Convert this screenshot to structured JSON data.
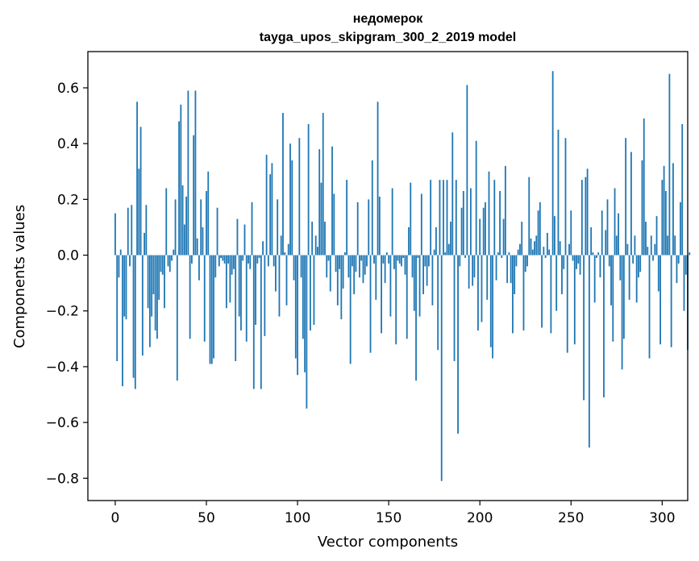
{
  "chart_data": {
    "type": "bar",
    "title_lines": [
      "недомерок",
      "tayga_upos_skipgram_300_2_2019 model"
    ],
    "xlabel": "Vector components",
    "ylabel": "Components values",
    "xlim": [
      -15,
      314
    ],
    "ylim": [
      -0.88,
      0.73
    ],
    "xticks": [
      0,
      50,
      100,
      150,
      200,
      250,
      300
    ],
    "xtick_labels": [
      "0",
      "50",
      "100",
      "150",
      "200",
      "250",
      "300"
    ],
    "yticks": [
      -0.8,
      -0.6,
      -0.4,
      -0.2,
      0.0,
      0.2,
      0.4,
      0.6
    ],
    "ytick_labels": [
      "−0.8",
      "−0.6",
      "−0.4",
      "−0.2",
      "0.0",
      "0.2",
      "0.4",
      "0.6"
    ],
    "bar_color": "#1f77b4",
    "values": [
      0.15,
      -0.38,
      -0.08,
      0.02,
      -0.47,
      -0.22,
      -0.23,
      0.17,
      -0.04,
      0.18,
      -0.44,
      -0.48,
      0.55,
      0.31,
      0.46,
      -0.36,
      0.08,
      0.18,
      -0.19,
      -0.33,
      -0.22,
      -0.14,
      -0.27,
      -0.3,
      -0.16,
      -0.06,
      -0.07,
      -0.19,
      0.24,
      -0.04,
      -0.06,
      -0.02,
      0.02,
      0.2,
      -0.45,
      0.48,
      0.54,
      0.25,
      0.11,
      0.21,
      0.59,
      -0.3,
      -0.03,
      0.43,
      0.59,
      0.06,
      -0.09,
      0.2,
      0.1,
      -0.31,
      0.23,
      0.3,
      -0.39,
      -0.39,
      -0.37,
      -0.08,
      0.17,
      -0.04,
      -0.01,
      -0.02,
      -0.03,
      -0.19,
      -0.03,
      -0.17,
      -0.07,
      -0.05,
      -0.38,
      0.13,
      -0.22,
      -0.27,
      -0.02,
      0.11,
      -0.31,
      -0.03,
      -0.05,
      0.19,
      -0.48,
      -0.25,
      -0.03,
      -0.01,
      -0.48,
      0.05,
      -0.29,
      0.36,
      -0.04,
      0.29,
      0.33,
      -0.04,
      -0.13,
      0.2,
      -0.22,
      0.07,
      0.51,
      0.01,
      -0.18,
      0.04,
      0.4,
      0.34,
      -0.09,
      -0.37,
      -0.43,
      0.42,
      -0.08,
      -0.3,
      -0.42,
      -0.55,
      0.47,
      -0.27,
      0.12,
      -0.25,
      0.07,
      0.03,
      0.38,
      0.26,
      0.51,
      0.12,
      -0.08,
      -0.02,
      -0.13,
      0.39,
      0.22,
      -0.06,
      -0.18,
      -0.05,
      -0.23,
      -0.12,
      0.01,
      0.27,
      -0.08,
      -0.39,
      -0.04,
      -0.14,
      -0.06,
      0.19,
      -0.08,
      -0.02,
      -0.1,
      -0.07,
      -0.04,
      0.2,
      -0.35,
      0.34,
      -0.03,
      -0.16,
      0.55,
      0.21,
      -0.28,
      -0.03,
      -0.1,
      0.01,
      -0.03,
      -0.22,
      0.24,
      -0.05,
      -0.32,
      -0.02,
      -0.03,
      -0.04,
      -0.01,
      -0.07,
      -0.3,
      0.1,
      0.26,
      -0.08,
      -0.2,
      -0.45,
      -0.01,
      -0.22,
      0.22,
      -0.14,
      -0.04,
      -0.11,
      -0.04,
      0.27,
      -0.18,
      0.02,
      0.1,
      -0.34,
      0.27,
      -0.81,
      0.27,
      0.01,
      0.27,
      0.04,
      0.12,
      0.44,
      -0.38,
      0.27,
      -0.64,
      -0.04,
      0.17,
      0.23,
      -0.01,
      0.61,
      -0.12,
      0.24,
      -0.11,
      -0.08,
      0.41,
      -0.27,
      0.13,
      -0.24,
      0.17,
      0.19,
      -0.16,
      0.3,
      -0.33,
      -0.37,
      0.27,
      -0.09,
      0.01,
      0.23,
      -0.01,
      0.13,
      0.32,
      -0.1,
      0.01,
      -0.1,
      -0.28,
      -0.14,
      -0.04,
      0.02,
      0.04,
      0.12,
      -0.27,
      -0.06,
      -0.04,
      0.28,
      0.06,
      0.02,
      0.05,
      0.07,
      0.16,
      0.19,
      -0.26,
      0.03,
      -0.01,
      0.08,
      0.02,
      -0.28,
      0.66,
      0.14,
      -0.2,
      0.45,
      0.05,
      -0.14,
      -0.05,
      0.42,
      -0.35,
      0.04,
      0.16,
      -0.02,
      -0.32,
      -0.05,
      -0.03,
      -0.07,
      0.27,
      -0.52,
      0.28,
      0.31,
      -0.69,
      0.1,
      0.01,
      -0.17,
      -0.01,
      0.01,
      -0.08,
      0.16,
      -0.51,
      0.09,
      0.2,
      -0.04,
      -0.18,
      -0.31,
      0.24,
      0.07,
      0.15,
      -0.09,
      -0.41,
      -0.3,
      0.42,
      0.04,
      -0.16,
      0.37,
      -0.03,
      0.07,
      -0.17,
      -0.08,
      -0.06,
      0.34,
      0.49,
      0.12,
      0.03,
      -0.37,
      0.07,
      -0.02,
      0.04,
      0.14,
      -0.13,
      -0.32,
      0.27,
      0.32,
      0.23,
      0.07,
      0.65,
      -0.33,
      0.33,
      0.07,
      -0.1,
      -0.03,
      0.19,
      0.47,
      -0.2,
      -0.07,
      -0.34,
      0.01
    ]
  }
}
